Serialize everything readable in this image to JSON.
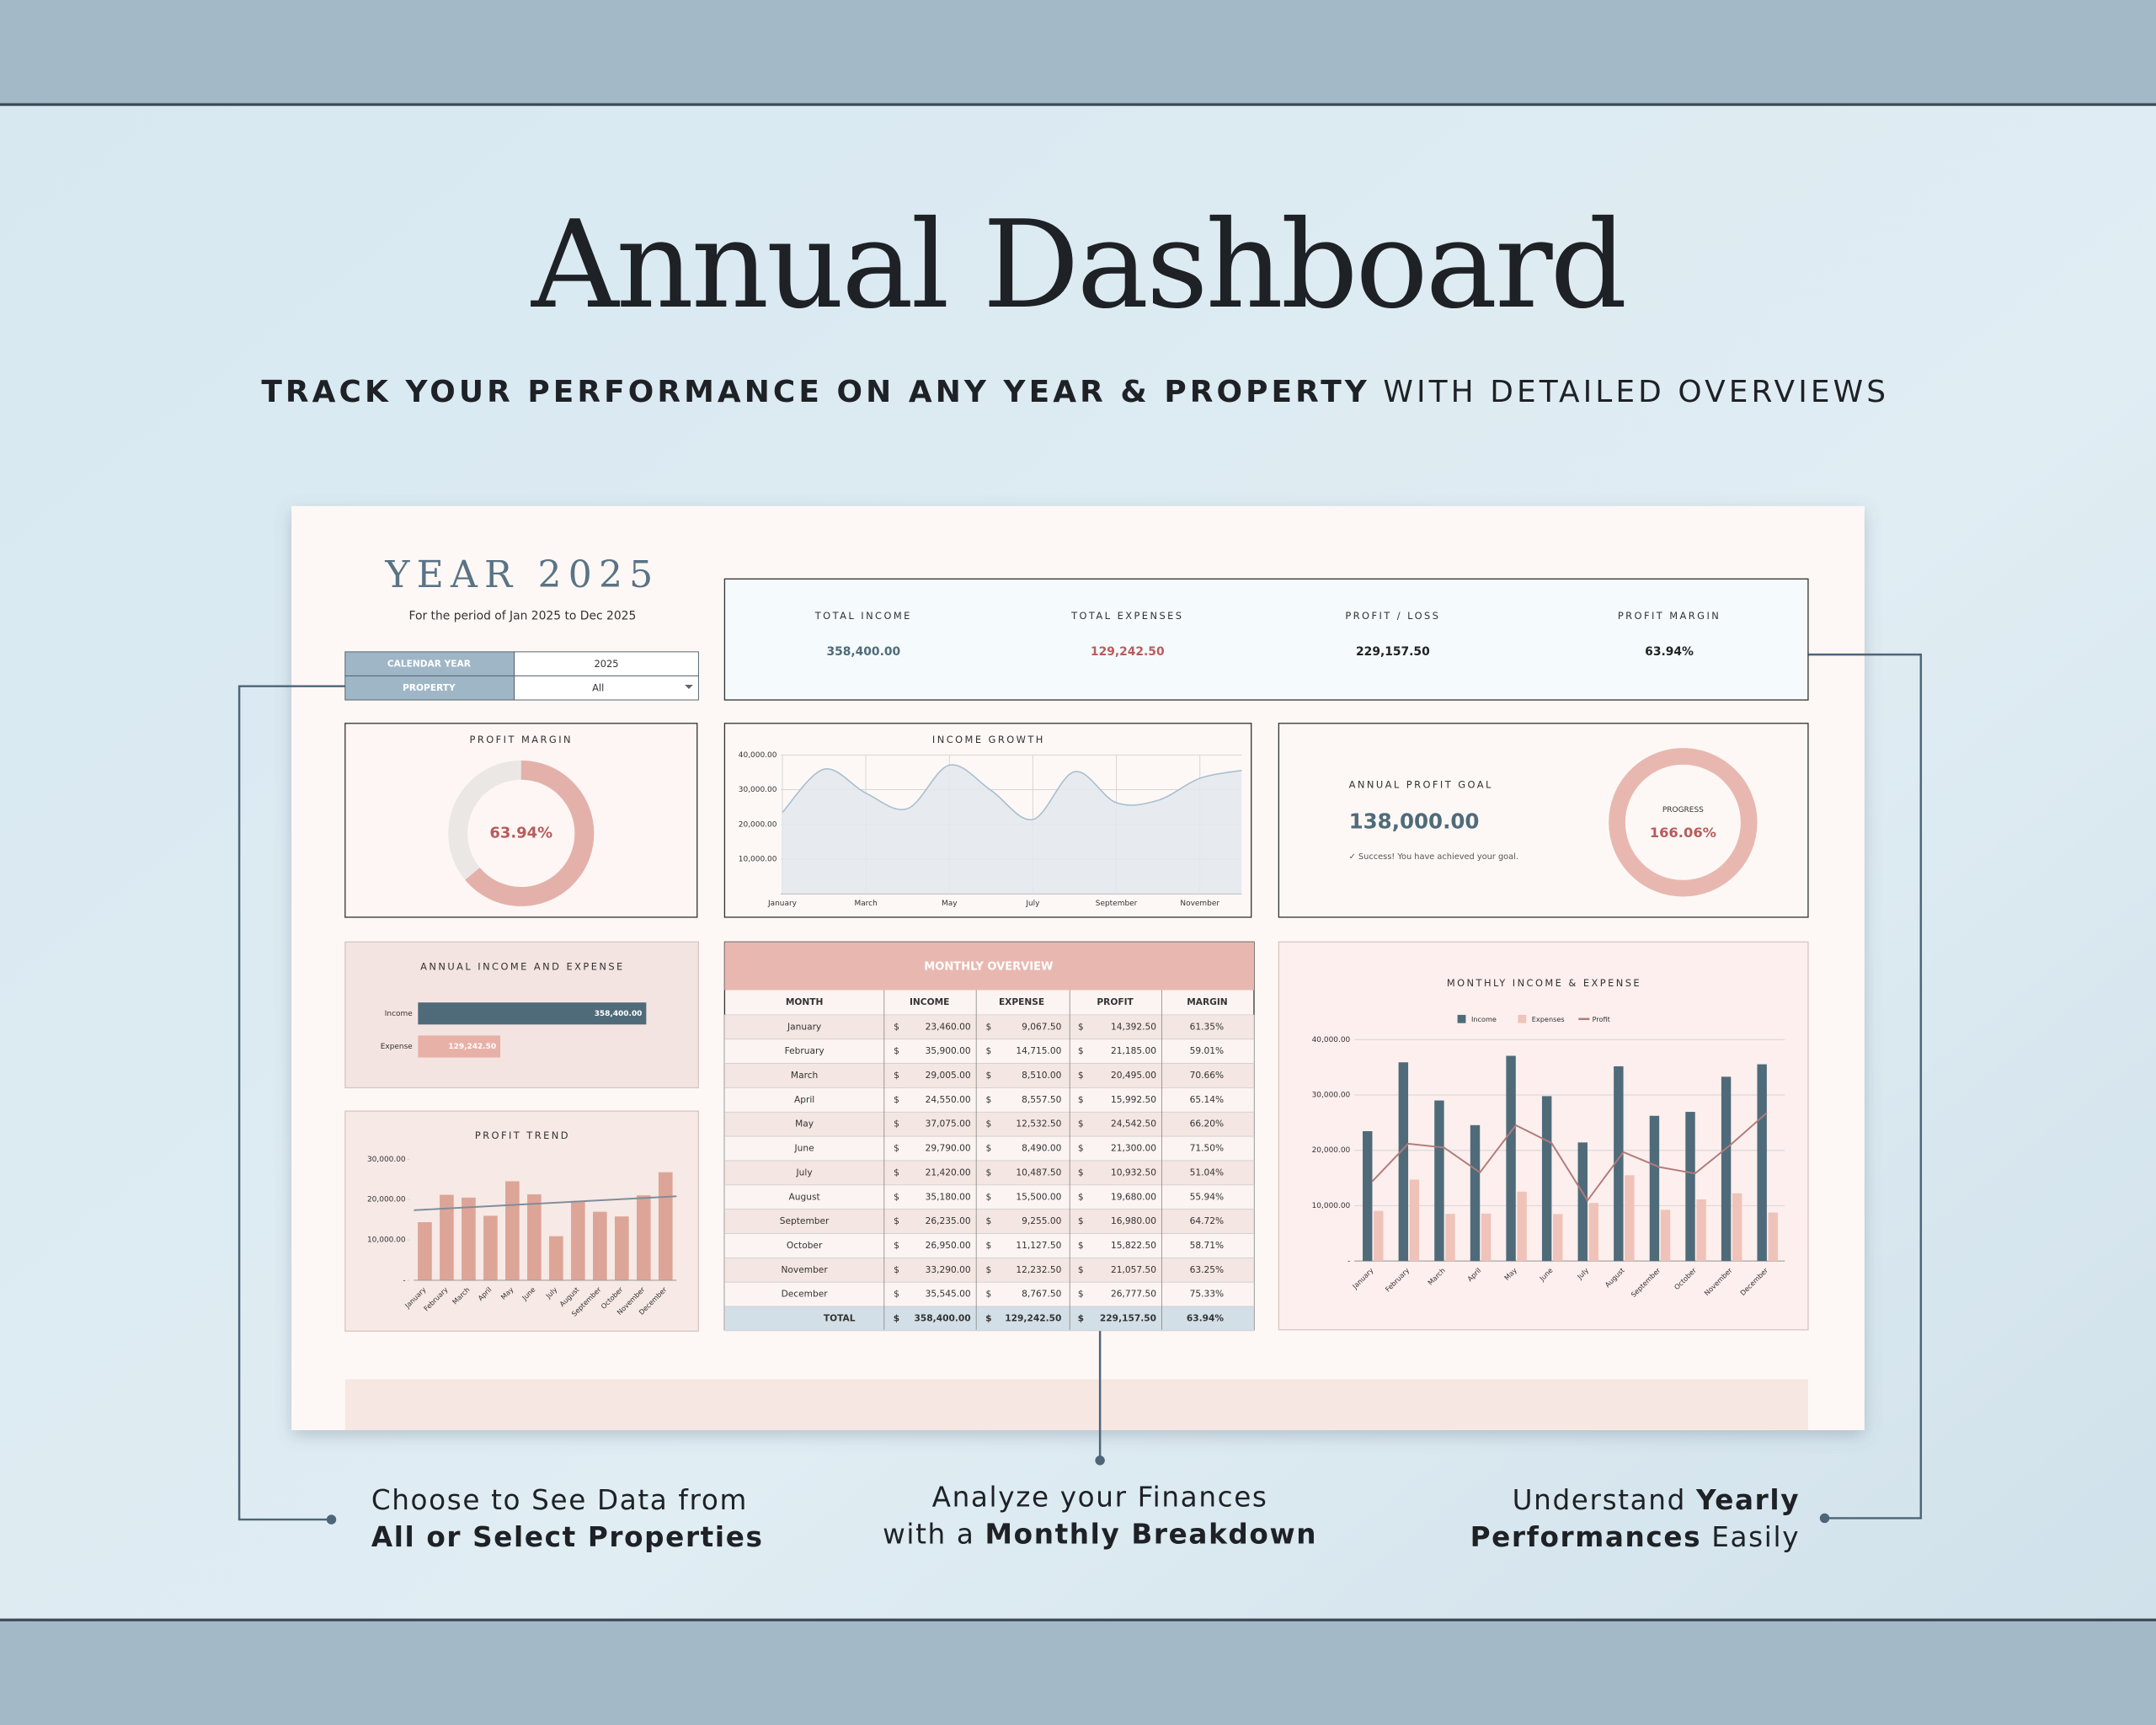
{
  "header": {
    "title": "Annual Dashboard",
    "subtitle": [
      {
        "text": "TRACK YOUR PERFORMANCE ON ANY YEAR & PROPERTY",
        "bold": true
      },
      {
        "text": " WITH DETAILED OVERVIEWS",
        "bold": false
      }
    ]
  },
  "dashboard": {
    "year_title": "YEAR 2025",
    "period": "For the period of Jan 2025 to Dec 2025",
    "filters": [
      [
        "CALENDAR YEAR",
        "2025"
      ],
      [
        "PROPERTY",
        "All"
      ]
    ],
    "kpis": [
      {
        "label": "TOTAL INCOME",
        "value": "358,400.00",
        "color": "#4f6b7a"
      },
      {
        "label": "TOTAL EXPENSES",
        "value": "129,242.50",
        "color": "#b85c5c"
      },
      {
        "label": "PROFIT / LOSS",
        "value": "229,157.50",
        "color": "#222222"
      },
      {
        "label": "PROFIT MARGIN",
        "value": "63.94%",
        "color": "#222222"
      }
    ],
    "goal": {
      "title": "ANNUAL PROFIT GOAL",
      "amount": "138,000.00",
      "message": "✓ Success! You have achieved your goal."
    },
    "table": {
      "title": "MONTHLY OVERVIEW",
      "columns": [
        "MONTH",
        "INCOME",
        "EXPENSE",
        "PROFIT",
        "MARGIN"
      ],
      "currency_symbol": "$",
      "rows": [
        [
          "January",
          "23,460.00",
          "9,067.50",
          "14,392.50",
          "61.35%"
        ],
        [
          "February",
          "35,900.00",
          "14,715.00",
          "21,185.00",
          "59.01%"
        ],
        [
          "March",
          "29,005.00",
          "8,510.00",
          "20,495.00",
          "70.66%"
        ],
        [
          "April",
          "24,550.00",
          "8,557.50",
          "15,992.50",
          "65.14%"
        ],
        [
          "May",
          "37,075.00",
          "12,532.50",
          "24,542.50",
          "66.20%"
        ],
        [
          "June",
          "29,790.00",
          "8,490.00",
          "21,300.00",
          "71.50%"
        ],
        [
          "July",
          "21,420.00",
          "10,487.50",
          "10,932.50",
          "51.04%"
        ],
        [
          "August",
          "35,180.00",
          "15,500.00",
          "19,680.00",
          "55.94%"
        ],
        [
          "September",
          "26,235.00",
          "9,255.00",
          "16,980.00",
          "64.72%"
        ],
        [
          "October",
          "26,950.00",
          "11,127.50",
          "15,822.50",
          "58.71%"
        ],
        [
          "November",
          "33,290.00",
          "12,232.50",
          "21,057.50",
          "63.25%"
        ],
        [
          "December",
          "35,545.00",
          "8,767.50",
          "26,777.50",
          "75.33%"
        ]
      ],
      "total": [
        "TOTAL",
        "358,400.00",
        "129,242.50",
        "229,157.50",
        "63.94%"
      ]
    }
  },
  "chart_data": [
    {
      "type": "donut",
      "title": "PROFIT MARGIN",
      "values": [
        63.94
      ],
      "value_labels": [
        "63.94%"
      ],
      "color": "#e4b1aa",
      "track_color": "#ebe7e5"
    },
    {
      "type": "area",
      "title": "INCOME GROWTH",
      "categories": [
        "January",
        null,
        "March",
        null,
        "May",
        null,
        "July",
        null,
        "September",
        null,
        "November",
        null
      ],
      "values": [
        23460,
        35900,
        29005,
        24550,
        37075,
        29790,
        21420,
        35180,
        26235,
        26950,
        33290,
        35545
      ],
      "ylim": [
        0,
        40000
      ],
      "yticks": [
        {
          "value": 10000,
          "label": "10,000.00"
        },
        {
          "value": 20000,
          "label": "20,000.00"
        },
        {
          "value": 30000,
          "label": "30,000.00"
        },
        {
          "value": 40000,
          "label": "40,000.00"
        }
      ],
      "grid": true,
      "color": "#a9c0cf"
    },
    {
      "type": "donut",
      "title": "PROGRESS",
      "values": [
        166.06
      ],
      "value_labels": [
        "166.06%"
      ],
      "color": "#e8b8b0",
      "track_color": "#f4dcd7"
    },
    {
      "type": "hbar",
      "title": "ANNUAL INCOME AND EXPENSE",
      "categories": [
        "Income",
        "Expense"
      ],
      "values": [
        358400,
        129242.5
      ],
      "value_labels": [
        "358,400.00",
        "129,242.50"
      ],
      "colors": [
        "#4f6b7a",
        "#e8b1a8"
      ]
    },
    {
      "type": "bar",
      "title": "PROFIT TREND",
      "categories": [
        "January",
        "February",
        "March",
        "April",
        "May",
        "June",
        "July",
        "August",
        "September",
        "October",
        "November",
        "December"
      ],
      "values": [
        14392.5,
        21185,
        20495,
        15992.5,
        24542.5,
        21300,
        10932.5,
        19680,
        16980,
        15822.5,
        21057.5,
        26777.5
      ],
      "ylim": [
        0,
        30000
      ],
      "yticks": [
        {
          "value": 0,
          "label": "-"
        },
        {
          "value": 10000,
          "label": "10,000.00"
        },
        {
          "value": 20000,
          "label": "20,000.00"
        },
        {
          "value": 30000,
          "label": "30,000.00"
        }
      ],
      "color": "#dda597",
      "trendline": true
    },
    {
      "type": "combo",
      "title": "MONTHLY INCOME & EXPENSE",
      "categories": [
        "January",
        "February",
        "March",
        "April",
        "May",
        "June",
        "July",
        "August",
        "September",
        "October",
        "November",
        "December"
      ],
      "series": [
        {
          "name": "Income",
          "type": "bar",
          "color": "#4f6b7a",
          "values": [
            23460,
            35900,
            29005,
            24550,
            37075,
            29790,
            21420,
            35180,
            26235,
            26950,
            33290,
            35545
          ]
        },
        {
          "name": "Expenses",
          "type": "bar",
          "color": "#efc3b9",
          "values": [
            9067.5,
            14715,
            8510,
            8557.5,
            12532.5,
            8490,
            10487.5,
            15500,
            9255,
            11127.5,
            12232.5,
            8767.5
          ]
        },
        {
          "name": "Profit",
          "type": "line",
          "color": "#b07b7b",
          "values": [
            14392.5,
            21185,
            20495,
            15992.5,
            24542.5,
            21300,
            10932.5,
            19680,
            16980,
            15822.5,
            21057.5,
            26777.5
          ]
        }
      ],
      "ylim": [
        0,
        40000
      ],
      "yticks": [
        {
          "value": 0,
          "label": "-"
        },
        {
          "value": 10000,
          "label": "10,000.00"
        },
        {
          "value": 20000,
          "label": "20,000.00"
        },
        {
          "value": 30000,
          "label": "30,000.00"
        },
        {
          "value": 40000,
          "label": "40,000.00"
        }
      ],
      "grid": true
    }
  ],
  "callouts": [
    {
      "align": "start",
      "lines": [
        [
          {
            "text": "Choose to See Data from",
            "bold": false
          }
        ],
        [
          {
            "text": "All or Select Properties",
            "bold": true
          }
        ]
      ]
    },
    {
      "align": "middle",
      "lines": [
        [
          {
            "text": "Analyze your Finances",
            "bold": false
          }
        ],
        [
          {
            "text": "with a ",
            "bold": false
          },
          {
            "text": "Monthly Breakdown",
            "bold": true
          }
        ]
      ]
    },
    {
      "align": "end",
      "lines": [
        [
          {
            "text": "Understand ",
            "bold": false
          },
          {
            "text": "Yearly",
            "bold": true
          }
        ],
        [
          {
            "text": "Performances",
            "bold": true
          },
          {
            "text": " Easily",
            "bold": false
          }
        ]
      ]
    }
  ]
}
